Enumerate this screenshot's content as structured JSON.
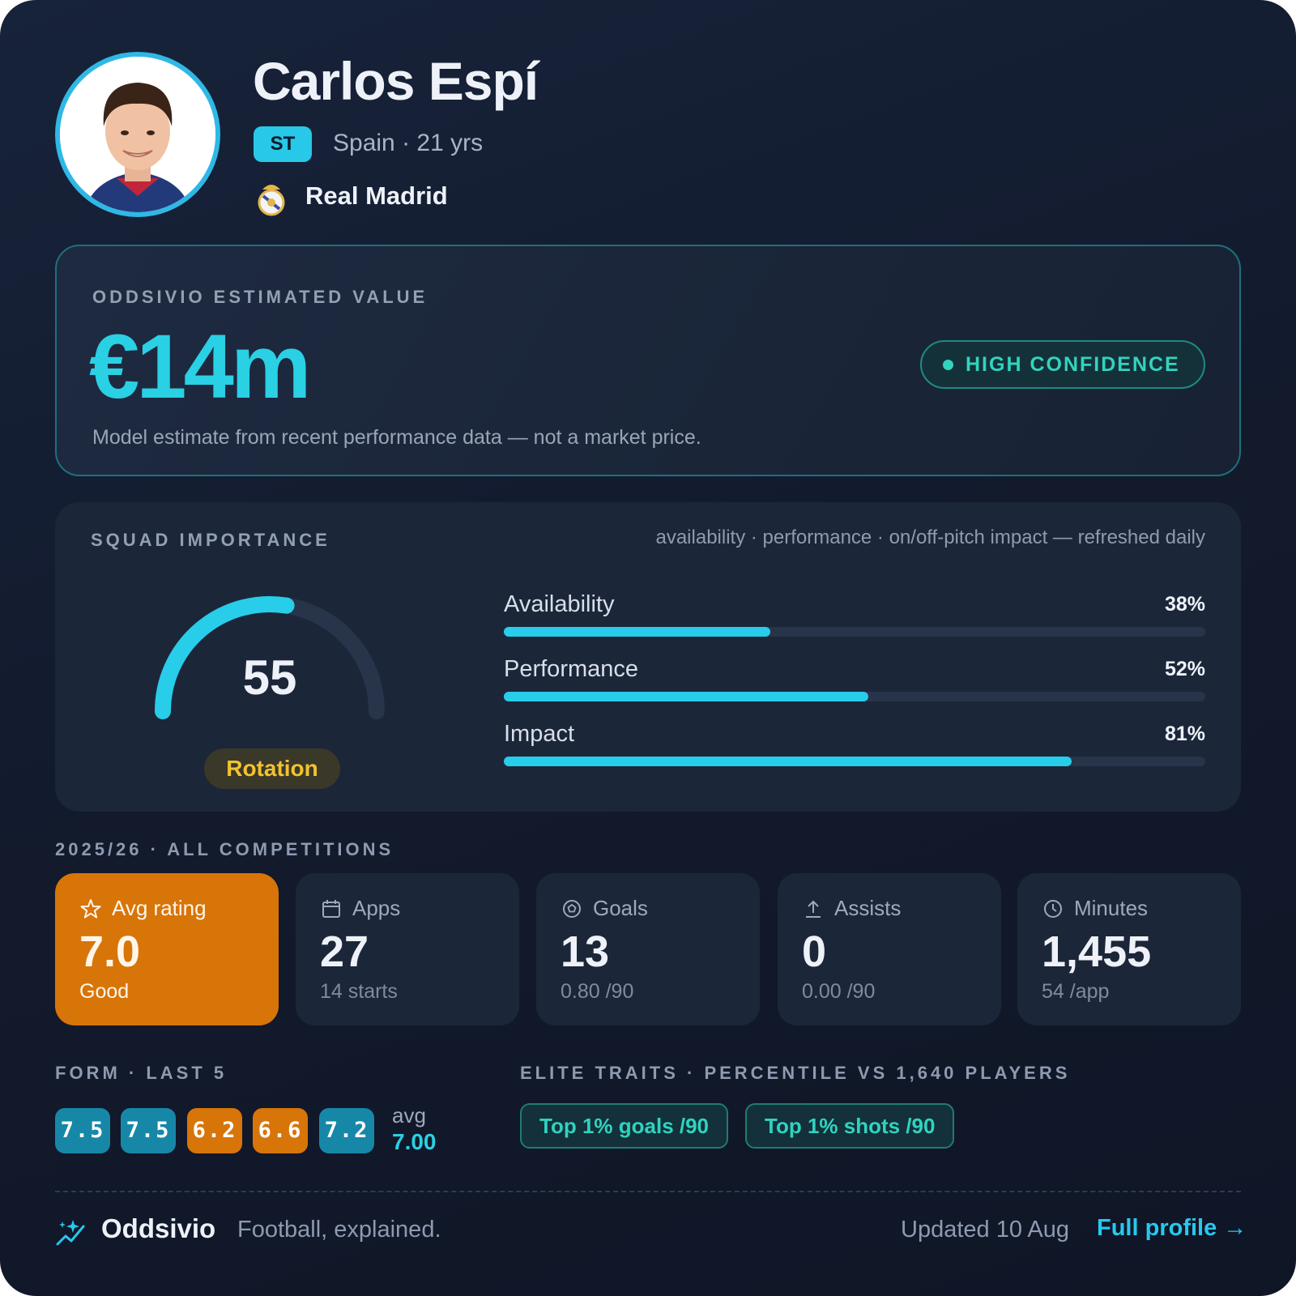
{
  "player": {
    "name": "Carlos Espí",
    "position": "ST",
    "meta": "Spain · 21 yrs",
    "club": "Real Madrid",
    "avatar": "avatar-photo",
    "crest": "club-crest-icon"
  },
  "valuation": {
    "label": "ODDSIVIO ESTIMATED VALUE",
    "amount": "€14m",
    "note": "Model estimate from recent performance data — not a market price.",
    "confidence": "HIGH CONFIDENCE"
  },
  "squad_importance": {
    "label": "SQUAD IMPORTANCE",
    "note": "availability · performance · on/off-pitch impact — refreshed daily",
    "score": "55",
    "score_max": 100,
    "status": "Rotation",
    "metrics": [
      {
        "label": "Availability",
        "value": "38%",
        "fraction": 0.38
      },
      {
        "label": "Performance",
        "value": "52%",
        "fraction": 0.52
      },
      {
        "label": "Impact",
        "value": "81%",
        "fraction": 0.81
      }
    ]
  },
  "season": {
    "label": "2025/26 · ALL COMPETITIONS",
    "stats": [
      {
        "label": "Avg rating",
        "value": "7.0",
        "sub": "Good",
        "icon": "star-icon",
        "highlight": true
      },
      {
        "label": "Apps",
        "value": "27",
        "sub": "14 starts",
        "icon": "calendar-icon"
      },
      {
        "label": "Goals",
        "value": "13",
        "sub": "0.80 /90",
        "icon": "football-icon"
      },
      {
        "label": "Assists",
        "value": "0",
        "sub": "0.00 /90",
        "icon": "upload-arrow-icon"
      },
      {
        "label": "Minutes",
        "value": "1,455",
        "sub": "54 /app",
        "icon": "clock-icon"
      }
    ]
  },
  "form": {
    "label": "FORM · LAST 5",
    "ratings": [
      "7.5",
      "7.5",
      "6.2",
      "6.6",
      "7.2"
    ],
    "avg_label": "avg",
    "avg_value": "7.00"
  },
  "traits": {
    "label": "ELITE TRAITS · PERCENTILE VS 1,640 PLAYERS",
    "items": [
      "Top 1% goals /90",
      "Top 1% shots /90"
    ]
  },
  "footer": {
    "brand": "Oddsivio",
    "tagline": "Football, explained.",
    "updated": "Updated 10 Aug",
    "link": "Full profile →",
    "brand_icon": "sparkle-chart-icon"
  },
  "colors": {
    "accent": "#27cde9",
    "highlight": "#d87508",
    "status_amber": "#f2c230",
    "confidence_green": "#33d3bd",
    "form_good": "#1787a8",
    "form_poor": "#d87508"
  }
}
